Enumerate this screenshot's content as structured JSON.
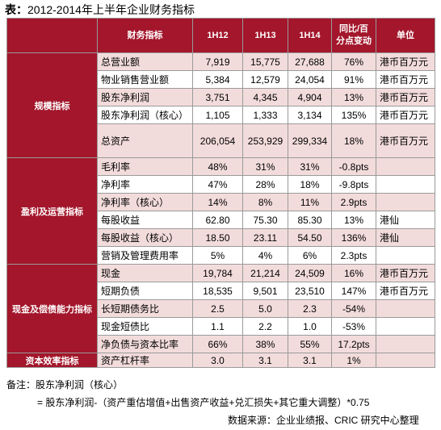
{
  "header": {
    "title": "2012-2014年上半年企业财务指标",
    "title_prefix": "表："
  },
  "table": {
    "columns": [
      "财务指标",
      "1H12",
      "1H13",
      "1H14",
      "同比/百分点变动",
      "单位"
    ],
    "groups": [
      {
        "label": "规模指标",
        "rows": [
          [
            "总营业额",
            "7,919",
            "15,775",
            "27,688",
            "76%",
            "港币百万元"
          ],
          [
            "物业销售营业额",
            "5,384",
            "12,579",
            "24,054",
            "91%",
            "港币百万元"
          ],
          [
            "股东净利润",
            "3,751",
            "4,345",
            "4,904",
            "13%",
            "港币百万元"
          ],
          [
            "股东净利润（核心）",
            "1,105",
            "1,333",
            "3,134",
            "135%",
            "港币百万元"
          ],
          [
            "总资产",
            "206,054",
            "253,929",
            "299,334",
            "18%",
            "港币百万元"
          ]
        ]
      },
      {
        "label": "盈利及运营指标",
        "rows": [
          [
            "毛利率",
            "48%",
            "31%",
            "31%",
            "-0.8pts",
            null
          ],
          [
            "净利率",
            "47%",
            "28%",
            "18%",
            "-9.8pts",
            null
          ],
          [
            "净利率（核心）",
            "14%",
            "8%",
            "11%",
            "2.9pts",
            null
          ],
          [
            "每股收益",
            "62.80",
            "75.30",
            "85.30",
            "13%",
            "港仙"
          ],
          [
            "每股收益（核心）",
            "18.50",
            "23.11",
            "54.50",
            "136%",
            "港仙"
          ],
          [
            "营销及管理费用率",
            "5%",
            "4%",
            "6%",
            "2.3pts",
            null
          ]
        ]
      },
      {
        "label": "现金及偿债能力指标",
        "rows": [
          [
            "现金",
            "19,784",
            "21,214",
            "24,509",
            "16%",
            "港币百万元"
          ],
          [
            "短期负债",
            "18,535",
            "9,501",
            "23,510",
            "147%",
            "港币百万元"
          ],
          [
            "长短期债务比",
            "2.5",
            "5.0",
            "2.3",
            "-54%",
            null
          ],
          [
            "现金短债比",
            "1.1",
            "2.2",
            "1.0",
            "-53%",
            null
          ],
          [
            "净负债与资本比率",
            "66%",
            "38%",
            "55%",
            "17.2pts",
            null
          ]
        ]
      },
      {
        "label": "资本效率指标",
        "rows": [
          [
            "资产杠杆率",
            "3.0",
            "3.1",
            "3.1",
            "1%",
            null
          ]
        ]
      }
    ]
  },
  "notes": {
    "remark": "备注：股东净利润（核心）",
    "formula": "=  股东净利润-（资产重估增值+出售资产收益+兑汇损失+其它重大调整）*0.75",
    "source": "数据来源：企业业绩报、CRIC 研究中心整理"
  }
}
